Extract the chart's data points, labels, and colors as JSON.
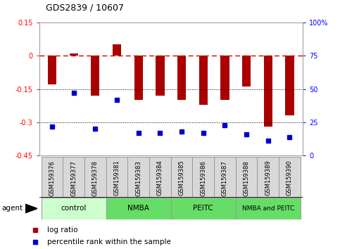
{
  "title": "GDS2839 / 10607",
  "samples": [
    "GSM159376",
    "GSM159377",
    "GSM159378",
    "GSM159381",
    "GSM159383",
    "GSM159384",
    "GSM159385",
    "GSM159386",
    "GSM159387",
    "GSM159388",
    "GSM159389",
    "GSM159390"
  ],
  "log_ratio": [
    -0.13,
    0.01,
    -0.18,
    0.05,
    -0.2,
    -0.18,
    -0.2,
    -0.22,
    -0.2,
    -0.14,
    -0.32,
    -0.27
  ],
  "percentile_rank": [
    22,
    47,
    20,
    42,
    17,
    17,
    18,
    17,
    23,
    16,
    11,
    14
  ],
  "ylim_left": [
    -0.45,
    0.15
  ],
  "ylim_right": [
    0,
    100
  ],
  "bar_color": "#aa0000",
  "dot_color": "#0000cc",
  "hline_color": "#cc0000",
  "dotted_line_color": "#000000",
  "group_data": [
    {
      "label": "control",
      "start": 0,
      "end": 3,
      "color": "#ccffcc"
    },
    {
      "label": "NMBA",
      "start": 3,
      "end": 6,
      "color": "#66dd66"
    },
    {
      "label": "PEITC",
      "start": 6,
      "end": 9,
      "color": "#66dd66"
    },
    {
      "label": "NMBA and PEITC",
      "start": 9,
      "end": 12,
      "color": "#66dd66"
    }
  ],
  "left_yticks": [
    0.15,
    0,
    -0.15,
    -0.3,
    -0.45
  ],
  "left_yticklabels": [
    "0.15",
    "0",
    "-0.15",
    "-0.3",
    "-0.45"
  ],
  "right_yticks": [
    0,
    25,
    50,
    75,
    100
  ],
  "right_yticklabels": [
    "0",
    "25",
    "50",
    "75",
    "100%"
  ],
  "legend_items": [
    {
      "color": "#aa0000",
      "label": "log ratio"
    },
    {
      "color": "#0000cc",
      "label": "percentile rank within the sample"
    }
  ]
}
